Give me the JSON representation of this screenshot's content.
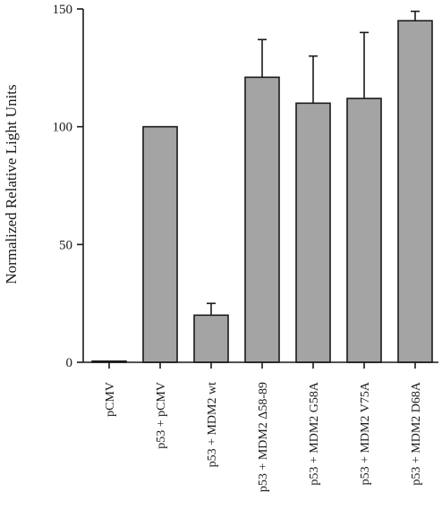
{
  "chart_data": {
    "type": "bar",
    "categories": [
      "pCMV",
      "p53 + pCMV",
      "p53 + MDM2 wt",
      "p53 + MDM2 Δ58-89",
      "p53 + MDM2 G58A",
      "p53 + MDM2 V75A",
      "p53 + MDM2 D68A"
    ],
    "values": [
      0.5,
      100,
      20,
      121,
      110,
      112,
      145
    ],
    "errors": [
      0,
      0,
      5,
      16,
      20,
      28,
      4
    ],
    "ylabel": "Normalized Relative Light Units",
    "xlabel": "",
    "ylim": [
      0,
      150
    ],
    "yticks": [
      0,
      50,
      100,
      150
    ],
    "grid": false,
    "colors": {
      "bar_fill": "#a4a4a4",
      "bar_edge": "#1a1a1a"
    }
  }
}
